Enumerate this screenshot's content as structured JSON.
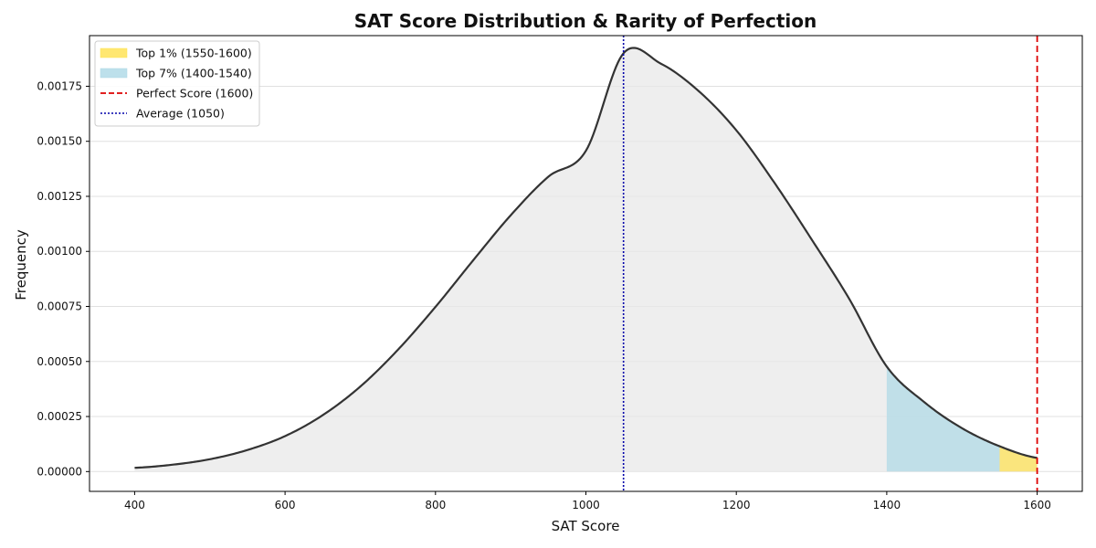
{
  "chart_data": {
    "type": "area",
    "title": "SAT Score Distribution & Rarity of Perfection",
    "xlabel": "SAT Score",
    "ylabel": "Frequency",
    "xlim": [
      340,
      1660
    ],
    "ylim": [
      -9e-05,
      0.00198
    ],
    "xticks": [
      400,
      600,
      800,
      1000,
      1200,
      1400,
      1600
    ],
    "xtick_labels": [
      "400",
      "600",
      "800",
      "1000",
      "1200",
      "1400",
      "1600"
    ],
    "yticks": [
      0,
      0.00025,
      0.0005,
      0.00075,
      0.001,
      0.00125,
      0.0015,
      0.00175
    ],
    "ytick_labels": [
      "0.00000",
      "0.00025",
      "0.00050",
      "0.00075",
      "0.00100",
      "0.00125",
      "0.00150",
      "0.00175"
    ],
    "grid": "horizontal",
    "legend_position": "top-left",
    "curve": {
      "x": [
        400,
        450,
        500,
        550,
        600,
        650,
        700,
        750,
        800,
        850,
        900,
        950,
        1000,
        1050,
        1100,
        1150,
        1200,
        1250,
        1300,
        1350,
        1400,
        1450,
        1500,
        1550,
        1600
      ],
      "y": [
        1.7e-05,
        3.1e-05,
        5.6e-05,
        9.8e-05,
        0.000161,
        0.000256,
        0.000386,
        0.000553,
        0.000748,
        0.000959,
        0.001164,
        0.001339,
        0.001457,
        0.0019,
        0.001852,
        0.001728,
        0.00155,
        0.001315,
        0.001055,
        0.000785,
        0.000477,
        0.000315,
        0.000197,
        0.000115,
        6.2e-05
      ],
      "color": "#333333"
    },
    "series": [
      {
        "name": "Top 1% (1550-1600)",
        "kind": "fill",
        "range": [
          1550,
          1600
        ],
        "color": "#ffe14d"
      },
      {
        "name": "Top 7% (1400-1540)",
        "kind": "fill",
        "range": [
          1400,
          1550
        ],
        "color": "#add8e6"
      },
      {
        "name": "Perfect Score (1600)",
        "kind": "vline",
        "x": 1600,
        "color": "#dd0000",
        "style": "dashed"
      },
      {
        "name": "Average (1050)",
        "kind": "vline",
        "x": 1050,
        "color": "#0000aa",
        "style": "dotted"
      }
    ]
  }
}
